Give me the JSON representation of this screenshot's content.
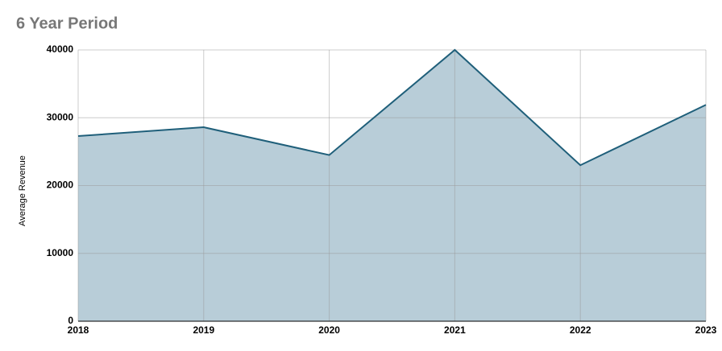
{
  "chart_data": {
    "type": "area",
    "title": "6 Year Period",
    "y_label": "Average Revenue",
    "x": [
      2018,
      2019,
      2020,
      2021,
      2022,
      2023
    ],
    "values": [
      27300,
      28600,
      24500,
      40000,
      23000,
      31900
    ],
    "color": "#1f5f7a",
    "fill_color": "#b8cdd8",
    "xlim": [
      2018,
      2023
    ],
    "xticks": [
      2018,
      2019,
      2020,
      2021,
      2022,
      2023
    ],
    "ylim": [
      0,
      40000
    ],
    "yticks": [
      0,
      10000,
      20000,
      30000,
      40000
    ],
    "grid": true
  }
}
